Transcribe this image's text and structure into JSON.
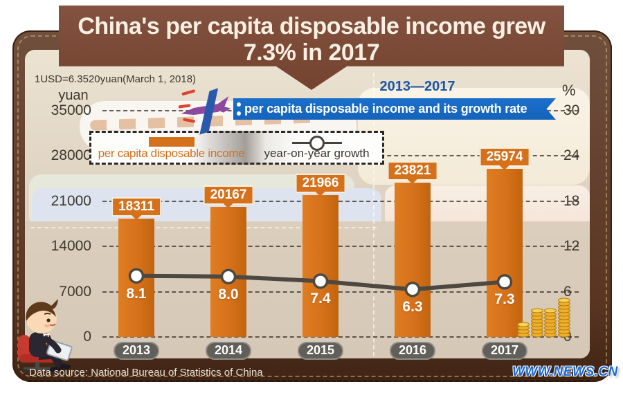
{
  "title": {
    "line1": "China's per capita disposable income grew",
    "line2": "7.3% in 2017"
  },
  "notes": {
    "exchange_rate": "1USD=6.3520yuan(March 1, 2018)"
  },
  "period_label": "2013—2017",
  "ribbon_label": "per capita disposable income and its growth rate",
  "axis_units": {
    "left": "yuan",
    "right": "%"
  },
  "legend": {
    "bar_label": "per capita disposable income",
    "line_label": "year-on-year growth"
  },
  "footer": {
    "source": "Data source: National Bureau of Statistics of China",
    "watermark": "WWW.NEWS.CN"
  },
  "colors": {
    "bar_orange": "#d5711a",
    "ribbon_blue": "#1767c0",
    "banner_brown": "#7a4936",
    "period_blue": "#1a55a4",
    "leather_brown": "#5d3a27",
    "panel_beige": "#e2d6c5",
    "growth_line_gray": "#4d4841",
    "year_pill_gray": "#615f5a",
    "watermark_blue": "#1668d8"
  },
  "chart_data": {
    "type": "bar",
    "title": "China's per capita disposable income grew 7.3% in 2017",
    "categories": [
      "2013",
      "2014",
      "2015",
      "2016",
      "2017"
    ],
    "series": [
      {
        "name": "per capita disposable income",
        "type": "bar",
        "unit": "yuan",
        "values": [
          18311,
          20167,
          21966,
          23821,
          25974
        ]
      },
      {
        "name": "year-on-year growth",
        "type": "line",
        "unit": "%",
        "values": [
          8.1,
          8.0,
          7.4,
          6.3,
          7.3
        ]
      }
    ],
    "left_axis": {
      "label": "yuan",
      "ticks": [
        0,
        7000,
        14000,
        21000,
        28000,
        35000
      ],
      "range": [
        0,
        35000
      ]
    },
    "right_axis": {
      "label": "%",
      "ticks": [
        0,
        6,
        12,
        18,
        24,
        30
      ],
      "range": [
        0,
        30
      ]
    },
    "grid": "dashed horizontal gridlines",
    "legend_position": "top-left box"
  }
}
